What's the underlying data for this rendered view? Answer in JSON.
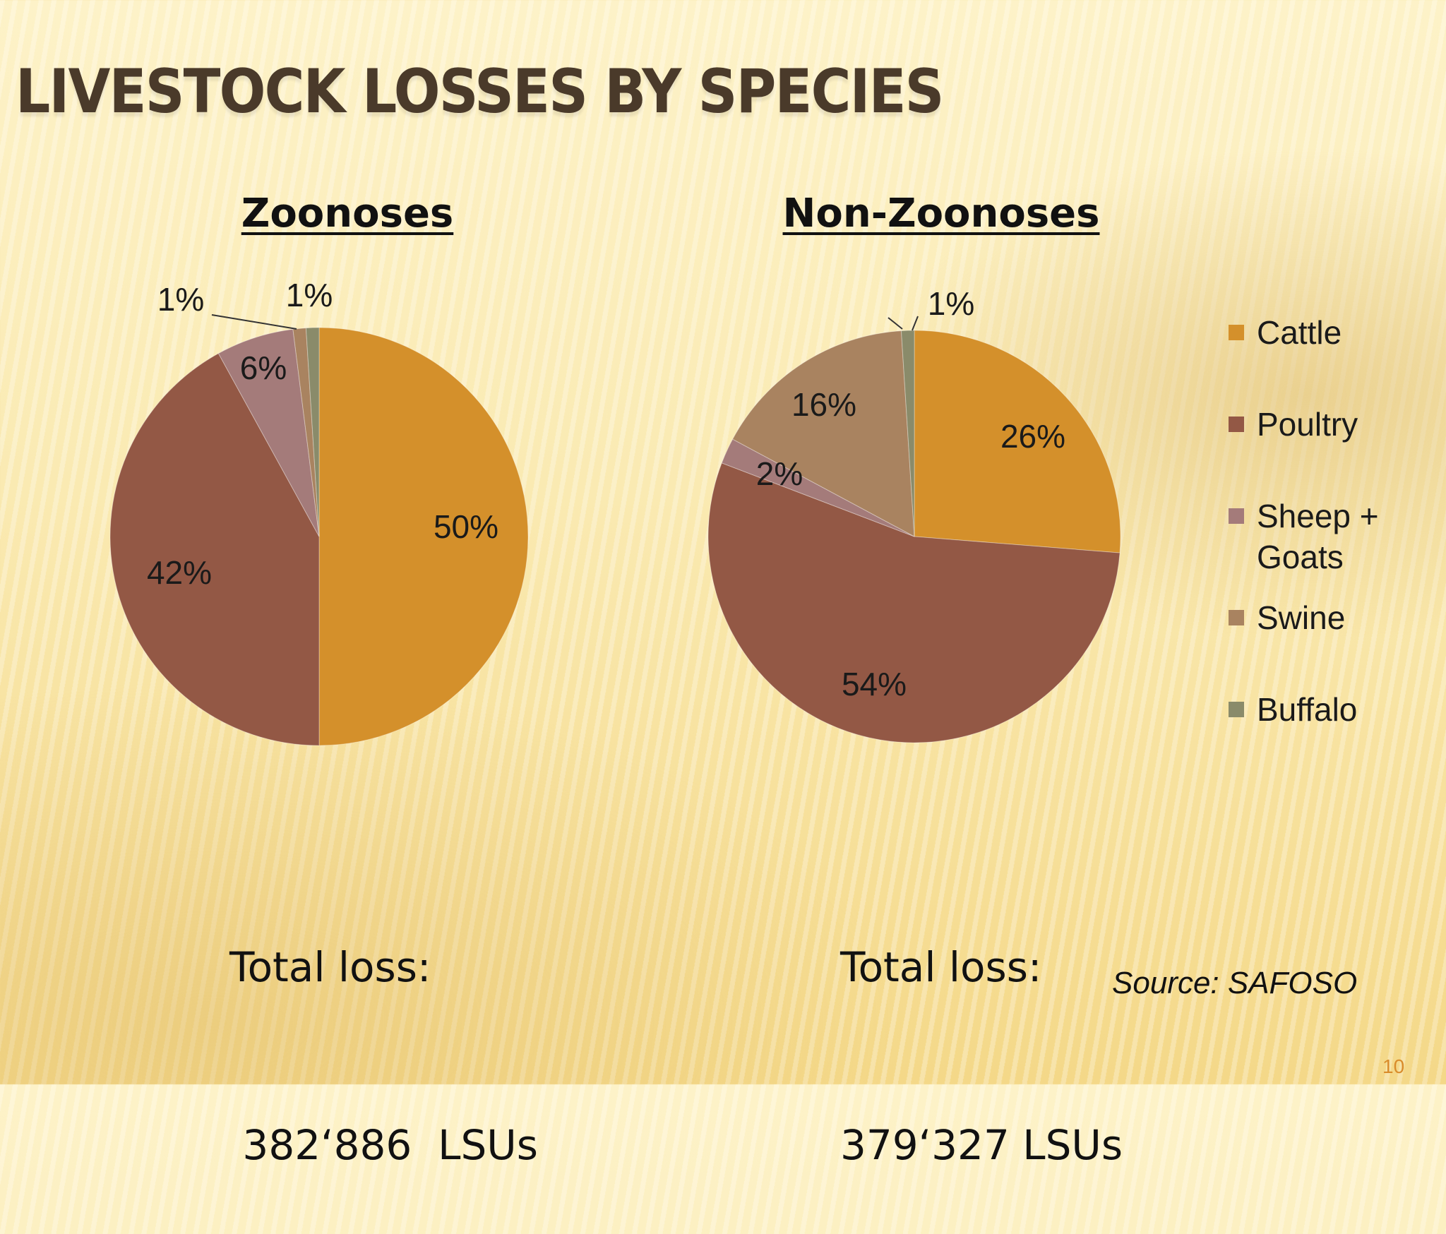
{
  "slide": {
    "title": "LIVESTOCK LOSSES BY SPECIES",
    "source": "Source: SAFOSO",
    "page_number": "10"
  },
  "colors": {
    "cattle": "#D4902B",
    "poultry": "#935845",
    "sheep_goats": "#A47B7A",
    "swine": "#A98360",
    "buffalo": "#8A8B6A"
  },
  "chart_data": [
    {
      "type": "pie",
      "title": "Zoonoses",
      "categories": [
        "Cattle",
        "Poultry",
        "Sheep + Goats",
        "Swine",
        "Buffalo"
      ],
      "values": [
        50,
        42,
        6,
        1,
        1
      ],
      "data_labels": [
        "50%",
        "42%",
        "6%",
        "1%",
        "1%"
      ],
      "total_label": "Total loss:",
      "total_value": " 382‘886  LSUs"
    },
    {
      "type": "pie",
      "title": "Non-Zoonoses",
      "categories": [
        "Cattle",
        "Poultry",
        "Sheep + Goats",
        "Swine",
        "Buffalo"
      ],
      "values": [
        26,
        54,
        2,
        16,
        1
      ],
      "data_labels": [
        "26%",
        "54%",
        "2%",
        "16%",
        "1%"
      ],
      "total_label": "Total loss:",
      "total_value": "379‘327 LSUs",
      "legend": {
        "position": "right",
        "entries": [
          "Cattle",
          "Poultry",
          "Sheep +\nGoats",
          "Swine",
          "Buffalo"
        ]
      }
    }
  ]
}
